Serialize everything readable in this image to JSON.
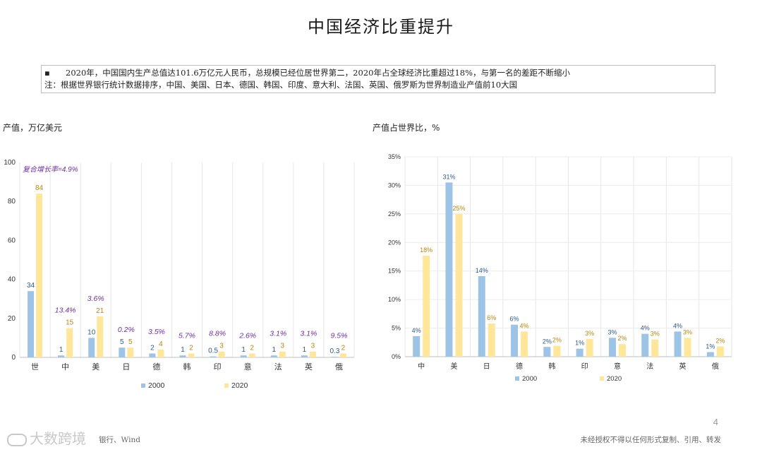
{
  "title": "中国经济比重提升",
  "note": {
    "line1": "2020年，中国国内生产总值达101.6万亿元人民币，总规模已经位居世界第二，2020年占全球经济比重超过18%，与第一名的差距不断缩小",
    "line2": "注：根据世界银行统计数据排序，中国、美国、日本、德国、韩国、印度、意大利、法国、英国、俄罗斯为世界制造业产值前10大国"
  },
  "left_chart_label": "产值，万亿美元",
  "right_chart_label": "产值占世界比，%",
  "footer_source": "银行、Wind",
  "footer_right": "未经授权不得以任何形式复制、引用、转发",
  "page_number": "4",
  "watermark": "大数跨境",
  "colors": {
    "s2000": "#9dc3e6",
    "s2020": "#ffe699",
    "cagr": "#7030a0",
    "label2000": "#2e5a8a",
    "label2020": "#b8860b"
  },
  "chart_data": [
    {
      "type": "bar",
      "categories": [
        "世",
        "中",
        "美",
        "日",
        "德",
        "韩",
        "印",
        "意",
        "法",
        "英",
        "俄"
      ],
      "series": [
        {
          "name": "2000",
          "values": [
            34,
            1,
            10,
            5,
            2,
            1,
            0.5,
            1,
            1,
            1,
            0.3
          ],
          "labels": [
            "34",
            "1",
            "10",
            "5",
            "2",
            "1",
            "0.5",
            "1",
            "1",
            "1",
            "0.3"
          ]
        },
        {
          "name": "2020",
          "values": [
            84,
            15,
            21,
            5,
            4,
            2,
            3,
            2,
            3,
            3,
            2
          ],
          "labels": [
            "84",
            "15",
            "21",
            "5",
            "4",
            "2",
            "3",
            "2",
            "3",
            "3",
            "2"
          ]
        }
      ],
      "cagr_title": "复合增长率=4.9%",
      "cagr_labels": [
        "",
        "13.4%",
        "3.6%",
        "0.2%",
        "3.5%",
        "5.7%",
        "8.8%",
        "2.6%",
        "3.1%",
        "3.1%",
        "9.5%"
      ],
      "ylim": [
        0,
        100
      ],
      "yticks": [
        "0",
        "20",
        "40",
        "60",
        "80",
        "100"
      ],
      "grid": true,
      "legend": "bottom"
    },
    {
      "type": "bar",
      "categories": [
        "中",
        "美",
        "日",
        "德",
        "韩",
        "印",
        "意",
        "法",
        "英",
        "俄"
      ],
      "series": [
        {
          "name": "2000",
          "values": [
            3.6,
            30.5,
            14.1,
            5.6,
            1.7,
            1.4,
            3.3,
            4.0,
            4.4,
            0.8
          ],
          "labels": [
            "4%",
            "31%",
            "14%",
            "6%",
            "2%",
            "1%",
            "3%",
            "4%",
            "4%",
            "1%"
          ]
        },
        {
          "name": "2020",
          "values": [
            17.7,
            25.0,
            5.8,
            4.4,
            1.9,
            3.1,
            2.2,
            3.0,
            3.3,
            1.8
          ],
          "labels": [
            "18%",
            "25%",
            "6%",
            "4%",
            "2%",
            "3%",
            "2%",
            "3%",
            "3%",
            "2%"
          ]
        }
      ],
      "ylim": [
        0,
        35
      ],
      "yticks": [
        "0%",
        "5%",
        "10%",
        "15%",
        "20%",
        "25%",
        "30%",
        "35%"
      ],
      "grid": true,
      "legend": "bottom"
    }
  ]
}
